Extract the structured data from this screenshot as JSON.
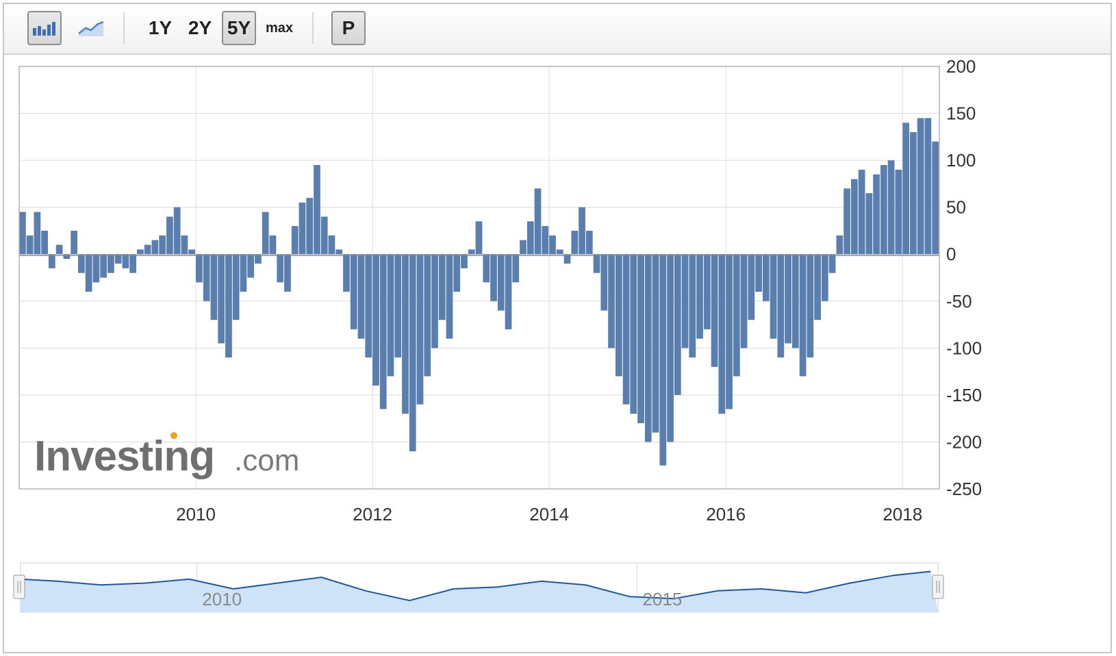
{
  "toolbar": {
    "bar_chart_button": "bar-chart-icon",
    "line_chart_button": "line-chart-icon",
    "ranges": [
      "1Y",
      "2Y",
      "5Y",
      "max"
    ],
    "active_range": "5Y",
    "p_button": "P"
  },
  "watermark": {
    "brand": "Investing",
    "suffix": ".com"
  },
  "colors": {
    "bar": "#5a7fae",
    "nav_line": "#1f5599",
    "nav_fill": "#cfe3f8",
    "grid": "#dcdcdc"
  },
  "chart_data": {
    "type": "bar",
    "ylim": [
      -250,
      200
    ],
    "yticks": [
      200,
      150,
      100,
      50,
      0,
      -50,
      -100,
      -150,
      -200,
      -250
    ],
    "xticks": [
      "2010",
      "2012",
      "2014",
      "2016",
      "2018"
    ],
    "x_range": [
      "2008-01",
      "2018-05"
    ],
    "series": [
      {
        "points": [
          {
            "x": "2008-01",
            "y": 45
          },
          {
            "x": "2008-02",
            "y": 20
          },
          {
            "x": "2008-03",
            "y": 45
          },
          {
            "x": "2008-04",
            "y": 25
          },
          {
            "x": "2008-05",
            "y": -15
          },
          {
            "x": "2008-06",
            "y": 10
          },
          {
            "x": "2008-07",
            "y": -5
          },
          {
            "x": "2008-08",
            "y": 25
          },
          {
            "x": "2008-09",
            "y": -20
          },
          {
            "x": "2008-10",
            "y": -40
          },
          {
            "x": "2008-11",
            "y": -30
          },
          {
            "x": "2008-12",
            "y": -25
          },
          {
            "x": "2009-01",
            "y": -20
          },
          {
            "x": "2009-02",
            "y": -10
          },
          {
            "x": "2009-03",
            "y": -15
          },
          {
            "x": "2009-04",
            "y": -20
          },
          {
            "x": "2009-05",
            "y": 5
          },
          {
            "x": "2009-06",
            "y": 10
          },
          {
            "x": "2009-07",
            "y": 15
          },
          {
            "x": "2009-08",
            "y": 20
          },
          {
            "x": "2009-09",
            "y": 40
          },
          {
            "x": "2009-10",
            "y": 50
          },
          {
            "x": "2009-11",
            "y": 20
          },
          {
            "x": "2009-12",
            "y": 5
          },
          {
            "x": "2010-01",
            "y": -30
          },
          {
            "x": "2010-02",
            "y": -50
          },
          {
            "x": "2010-03",
            "y": -70
          },
          {
            "x": "2010-04",
            "y": -95
          },
          {
            "x": "2010-05",
            "y": -110
          },
          {
            "x": "2010-06",
            "y": -70
          },
          {
            "x": "2010-07",
            "y": -40
          },
          {
            "x": "2010-08",
            "y": -25
          },
          {
            "x": "2010-09",
            "y": -10
          },
          {
            "x": "2010-10",
            "y": 45
          },
          {
            "x": "2010-11",
            "y": 20
          },
          {
            "x": "2010-12",
            "y": -30
          },
          {
            "x": "2011-01",
            "y": -40
          },
          {
            "x": "2011-02",
            "y": 30
          },
          {
            "x": "2011-03",
            "y": 55
          },
          {
            "x": "2011-04",
            "y": 60
          },
          {
            "x": "2011-05",
            "y": 95
          },
          {
            "x": "2011-06",
            "y": 40
          },
          {
            "x": "2011-07",
            "y": 20
          },
          {
            "x": "2011-08",
            "y": 5
          },
          {
            "x": "2011-09",
            "y": -40
          },
          {
            "x": "2011-10",
            "y": -80
          },
          {
            "x": "2011-11",
            "y": -90
          },
          {
            "x": "2011-12",
            "y": -110
          },
          {
            "x": "2012-01",
            "y": -140
          },
          {
            "x": "2012-02",
            "y": -165
          },
          {
            "x": "2012-03",
            "y": -130
          },
          {
            "x": "2012-04",
            "y": -110
          },
          {
            "x": "2012-05",
            "y": -170
          },
          {
            "x": "2012-06",
            "y": -210
          },
          {
            "x": "2012-07",
            "y": -160
          },
          {
            "x": "2012-08",
            "y": -130
          },
          {
            "x": "2012-09",
            "y": -100
          },
          {
            "x": "2012-10",
            "y": -70
          },
          {
            "x": "2012-11",
            "y": -90
          },
          {
            "x": "2012-12",
            "y": -40
          },
          {
            "x": "2013-01",
            "y": -15
          },
          {
            "x": "2013-02",
            "y": 5
          },
          {
            "x": "2013-03",
            "y": 35
          },
          {
            "x": "2013-04",
            "y": -30
          },
          {
            "x": "2013-05",
            "y": -50
          },
          {
            "x": "2013-06",
            "y": -60
          },
          {
            "x": "2013-07",
            "y": -80
          },
          {
            "x": "2013-08",
            "y": -30
          },
          {
            "x": "2013-09",
            "y": 15
          },
          {
            "x": "2013-10",
            "y": 35
          },
          {
            "x": "2013-11",
            "y": 70
          },
          {
            "x": "2013-12",
            "y": 30
          },
          {
            "x": "2014-01",
            "y": 20
          },
          {
            "x": "2014-02",
            "y": 5
          },
          {
            "x": "2014-03",
            "y": -10
          },
          {
            "x": "2014-04",
            "y": 25
          },
          {
            "x": "2014-05",
            "y": 50
          },
          {
            "x": "2014-06",
            "y": 25
          },
          {
            "x": "2014-07",
            "y": -20
          },
          {
            "x": "2014-08",
            "y": -60
          },
          {
            "x": "2014-09",
            "y": -100
          },
          {
            "x": "2014-10",
            "y": -130
          },
          {
            "x": "2014-11",
            "y": -160
          },
          {
            "x": "2014-12",
            "y": -170
          },
          {
            "x": "2015-01",
            "y": -180
          },
          {
            "x": "2015-02",
            "y": -200
          },
          {
            "x": "2015-03",
            "y": -190
          },
          {
            "x": "2015-04",
            "y": -225
          },
          {
            "x": "2015-05",
            "y": -200
          },
          {
            "x": "2015-06",
            "y": -150
          },
          {
            "x": "2015-07",
            "y": -100
          },
          {
            "x": "2015-08",
            "y": -110
          },
          {
            "x": "2015-09",
            "y": -90
          },
          {
            "x": "2015-10",
            "y": -80
          },
          {
            "x": "2015-11",
            "y": -120
          },
          {
            "x": "2015-12",
            "y": -170
          },
          {
            "x": "2016-01",
            "y": -165
          },
          {
            "x": "2016-02",
            "y": -130
          },
          {
            "x": "2016-03",
            "y": -100
          },
          {
            "x": "2016-04",
            "y": -70
          },
          {
            "x": "2016-05",
            "y": -40
          },
          {
            "x": "2016-06",
            "y": -50
          },
          {
            "x": "2016-07",
            "y": -90
          },
          {
            "x": "2016-08",
            "y": -110
          },
          {
            "x": "2016-09",
            "y": -95
          },
          {
            "x": "2016-10",
            "y": -100
          },
          {
            "x": "2016-11",
            "y": -130
          },
          {
            "x": "2016-12",
            "y": -110
          },
          {
            "x": "2017-01",
            "y": -70
          },
          {
            "x": "2017-02",
            "y": -50
          },
          {
            "x": "2017-03",
            "y": -20
          },
          {
            "x": "2017-04",
            "y": 20
          },
          {
            "x": "2017-05",
            "y": 70
          },
          {
            "x": "2017-06",
            "y": 80
          },
          {
            "x": "2017-07",
            "y": 90
          },
          {
            "x": "2017-08",
            "y": 65
          },
          {
            "x": "2017-09",
            "y": 85
          },
          {
            "x": "2017-10",
            "y": 95
          },
          {
            "x": "2017-11",
            "y": 100
          },
          {
            "x": "2017-12",
            "y": 90
          },
          {
            "x": "2018-01",
            "y": 140
          },
          {
            "x": "2018-02",
            "y": 130
          },
          {
            "x": "2018-03",
            "y": 145
          },
          {
            "x": "2018-04",
            "y": 145
          },
          {
            "x": "2018-05",
            "y": 120
          }
        ]
      }
    ],
    "navigator": {
      "xticks": [
        "2010",
        "2015"
      ],
      "points": [
        {
          "x": "2008-01",
          "y": 45
        },
        {
          "x": "2008-06",
          "y": 40
        },
        {
          "x": "2008-12",
          "y": 30
        },
        {
          "x": "2009-06",
          "y": 35
        },
        {
          "x": "2009-12",
          "y": 45
        },
        {
          "x": "2010-06",
          "y": 20
        },
        {
          "x": "2010-12",
          "y": 35
        },
        {
          "x": "2011-06",
          "y": 50
        },
        {
          "x": "2011-12",
          "y": 15
        },
        {
          "x": "2012-06",
          "y": -10
        },
        {
          "x": "2012-12",
          "y": 20
        },
        {
          "x": "2013-06",
          "y": 25
        },
        {
          "x": "2013-12",
          "y": 40
        },
        {
          "x": "2014-06",
          "y": 30
        },
        {
          "x": "2014-12",
          "y": 0
        },
        {
          "x": "2015-06",
          "y": -5
        },
        {
          "x": "2015-12",
          "y": 15
        },
        {
          "x": "2016-06",
          "y": 20
        },
        {
          "x": "2016-12",
          "y": 10
        },
        {
          "x": "2017-06",
          "y": 35
        },
        {
          "x": "2017-12",
          "y": 55
        },
        {
          "x": "2018-05",
          "y": 65
        }
      ]
    }
  }
}
